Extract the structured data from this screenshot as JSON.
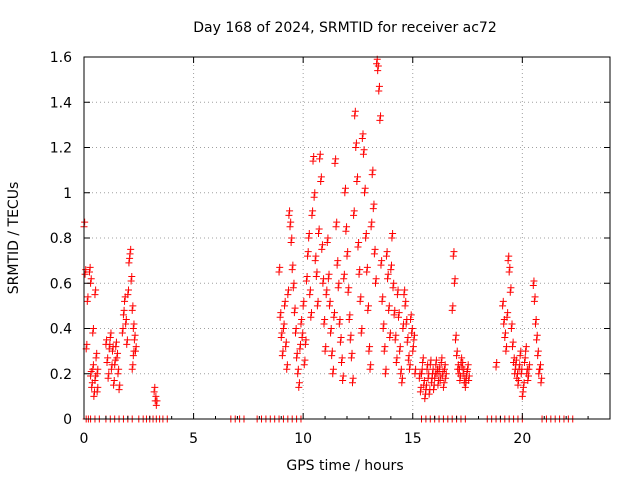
{
  "chart_data": {
    "type": "scatter",
    "title": "Day 168 of 2024, SRMTID for receiver ac72",
    "xlabel": "GPS time / hours",
    "ylabel": "SRMTID / TECUs",
    "xlim": [
      0,
      24
    ],
    "ylim": [
      0,
      1.6
    ],
    "xticks": [
      0,
      5,
      10,
      15,
      20
    ],
    "xtick_labels": [
      "0",
      "5",
      "10",
      "15",
      "20"
    ],
    "yticks": [
      0,
      0.2,
      0.4,
      0.6,
      0.8,
      1.0,
      1.2,
      1.4,
      1.6
    ],
    "ytick_labels": [
      "0",
      "0.2",
      "0.4",
      "0.6",
      "0.8",
      "1",
      "1.2",
      "1.4",
      "1.6"
    ],
    "grid": true,
    "marker": "+",
    "color": "#ff0000",
    "series": [
      {
        "name": "SRMTID",
        "points": [
          [
            0.0,
            0.85
          ],
          [
            0.05,
            0.64
          ],
          [
            0.1,
            0.31
          ],
          [
            0.15,
            0.52
          ],
          [
            0.25,
            0.65
          ],
          [
            0.3,
            0.6
          ],
          [
            0.3,
            0.19
          ],
          [
            0.35,
            0.14
          ],
          [
            0.4,
            0.38
          ],
          [
            0.4,
            0.22
          ],
          [
            0.45,
            0.1
          ],
          [
            0.5,
            0.17
          ],
          [
            0.5,
            0.55
          ],
          [
            0.55,
            0.27
          ],
          [
            0.6,
            0.2
          ],
          [
            0.6,
            0.12
          ],
          [
            1.0,
            0.33
          ],
          [
            1.05,
            0.25
          ],
          [
            1.1,
            0.18
          ],
          [
            1.15,
            0.31
          ],
          [
            1.2,
            0.36
          ],
          [
            1.25,
            0.22
          ],
          [
            1.3,
            0.3
          ],
          [
            1.35,
            0.15
          ],
          [
            1.4,
            0.24
          ],
          [
            1.45,
            0.32
          ],
          [
            1.5,
            0.27
          ],
          [
            1.55,
            0.2
          ],
          [
            1.6,
            0.13
          ],
          [
            1.75,
            0.38
          ],
          [
            1.8,
            0.46
          ],
          [
            1.85,
            0.52
          ],
          [
            1.9,
            0.42
          ],
          [
            1.95,
            0.33
          ],
          [
            2.0,
            0.55
          ],
          [
            2.05,
            0.69
          ],
          [
            2.1,
            0.73
          ],
          [
            2.15,
            0.61
          ],
          [
            2.2,
            0.48
          ],
          [
            2.25,
            0.4
          ],
          [
            2.3,
            0.35
          ],
          [
            2.25,
            0.28
          ],
          [
            2.2,
            0.22
          ],
          [
            2.35,
            0.3
          ],
          [
            3.2,
            0.12
          ],
          [
            3.25,
            0.08
          ],
          [
            3.3,
            0.06
          ],
          [
            8.9,
            0.65
          ],
          [
            8.95,
            0.45
          ],
          [
            9.0,
            0.36
          ],
          [
            9.05,
            0.28
          ],
          [
            9.1,
            0.4
          ],
          [
            9.15,
            0.5
          ],
          [
            9.2,
            0.32
          ],
          [
            9.25,
            0.22
          ],
          [
            9.3,
            0.55
          ],
          [
            9.35,
            0.9
          ],
          [
            9.4,
            0.85
          ],
          [
            9.45,
            0.78
          ],
          [
            9.5,
            0.66
          ],
          [
            9.55,
            0.58
          ],
          [
            9.6,
            0.47
          ],
          [
            9.65,
            0.38
          ],
          [
            9.7,
            0.27
          ],
          [
            9.75,
            0.2
          ],
          [
            9.8,
            0.14
          ],
          [
            9.85,
            0.31
          ],
          [
            9.9,
            0.42
          ],
          [
            9.95,
            0.36
          ],
          [
            10.0,
            0.5
          ],
          [
            10.05,
            0.24
          ],
          [
            10.1,
            0.33
          ],
          [
            10.15,
            0.61
          ],
          [
            10.2,
            0.72
          ],
          [
            10.25,
            0.8
          ],
          [
            10.3,
            0.55
          ],
          [
            10.35,
            0.45
          ],
          [
            10.4,
            0.9
          ],
          [
            10.45,
            1.14
          ],
          [
            10.5,
            0.98
          ],
          [
            10.55,
            0.7
          ],
          [
            10.6,
            0.63
          ],
          [
            10.65,
            0.5
          ],
          [
            10.7,
            0.82
          ],
          [
            10.75,
            1.15
          ],
          [
            10.8,
            1.05
          ],
          [
            10.85,
            0.75
          ],
          [
            10.9,
            0.6
          ],
          [
            10.95,
            0.42
          ],
          [
            11.0,
            0.3
          ],
          [
            11.05,
            0.55
          ],
          [
            11.1,
            0.78
          ],
          [
            11.15,
            0.62
          ],
          [
            11.2,
            0.5
          ],
          [
            11.25,
            0.38
          ],
          [
            11.3,
            0.28
          ],
          [
            11.35,
            0.2
          ],
          [
            11.4,
            0.45
          ],
          [
            11.45,
            1.13
          ],
          [
            11.5,
            0.85
          ],
          [
            11.55,
            0.68
          ],
          [
            11.6,
            0.58
          ],
          [
            11.65,
            0.42
          ],
          [
            11.7,
            0.34
          ],
          [
            11.75,
            0.25
          ],
          [
            11.8,
            0.17
          ],
          [
            11.85,
            0.62
          ],
          [
            11.9,
            1.0
          ],
          [
            11.95,
            0.83
          ],
          [
            12.0,
            0.72
          ],
          [
            12.05,
            0.56
          ],
          [
            12.1,
            0.44
          ],
          [
            12.15,
            0.35
          ],
          [
            12.2,
            0.27
          ],
          [
            12.25,
            0.16
          ],
          [
            12.3,
            0.9
          ],
          [
            12.35,
            1.34
          ],
          [
            12.4,
            1.2
          ],
          [
            12.45,
            1.05
          ],
          [
            12.5,
            0.76
          ],
          [
            12.55,
            0.64
          ],
          [
            12.6,
            0.52
          ],
          [
            12.65,
            0.38
          ],
          [
            12.7,
            1.24
          ],
          [
            12.75,
            1.17
          ],
          [
            12.8,
            1.0
          ],
          [
            12.85,
            0.8
          ],
          [
            12.9,
            0.65
          ],
          [
            12.95,
            0.48
          ],
          [
            13.0,
            0.3
          ],
          [
            13.05,
            0.22
          ],
          [
            13.1,
            0.85
          ],
          [
            13.15,
            1.08
          ],
          [
            13.2,
            0.93
          ],
          [
            13.25,
            0.73
          ],
          [
            13.3,
            0.6
          ],
          [
            13.35,
            1.57
          ],
          [
            13.4,
            1.54
          ],
          [
            13.45,
            1.45
          ],
          [
            13.5,
            1.32
          ],
          [
            13.55,
            0.68
          ],
          [
            13.6,
            0.52
          ],
          [
            13.65,
            0.4
          ],
          [
            13.7,
            0.3
          ],
          [
            13.75,
            0.2
          ],
          [
            13.8,
            0.72
          ],
          [
            13.85,
            0.62
          ],
          [
            13.9,
            0.48
          ],
          [
            13.95,
            0.36
          ],
          [
            14.0,
            0.66
          ],
          [
            14.05,
            0.8
          ],
          [
            14.1,
            0.58
          ],
          [
            14.15,
            0.46
          ],
          [
            14.2,
            0.35
          ],
          [
            14.25,
            0.25
          ],
          [
            14.3,
            0.55
          ],
          [
            14.35,
            0.45
          ],
          [
            14.4,
            0.3
          ],
          [
            14.45,
            0.2
          ],
          [
            14.5,
            0.16
          ],
          [
            14.55,
            0.4
          ],
          [
            14.6,
            0.55
          ],
          [
            14.65,
            0.5
          ],
          [
            14.7,
            0.42
          ],
          [
            14.75,
            0.34
          ],
          [
            14.8,
            0.26
          ],
          [
            14.85,
            0.22
          ],
          [
            14.9,
            0.44
          ],
          [
            14.95,
            0.38
          ],
          [
            15.0,
            0.3
          ],
          [
            15.05,
            0.35
          ],
          [
            15.1,
            0.2
          ],
          [
            15.3,
            0.18
          ],
          [
            15.35,
            0.12
          ],
          [
            15.4,
            0.2
          ],
          [
            15.45,
            0.25
          ],
          [
            15.5,
            0.15
          ],
          [
            15.55,
            0.09
          ],
          [
            15.6,
            0.13
          ],
          [
            15.65,
            0.22
          ],
          [
            15.7,
            0.18
          ],
          [
            15.75,
            0.11
          ],
          [
            15.8,
            0.24
          ],
          [
            15.85,
            0.16
          ],
          [
            15.9,
            0.2
          ],
          [
            15.95,
            0.13
          ],
          [
            16.0,
            0.18
          ],
          [
            16.05,
            0.24
          ],
          [
            16.1,
            0.2
          ],
          [
            16.15,
            0.15
          ],
          [
            16.2,
            0.21
          ],
          [
            16.25,
            0.17
          ],
          [
            16.3,
            0.25
          ],
          [
            16.35,
            0.19
          ],
          [
            16.4,
            0.14
          ],
          [
            16.45,
            0.22
          ],
          [
            16.5,
            0.18
          ],
          [
            16.8,
            0.48
          ],
          [
            16.85,
            0.72
          ],
          [
            16.9,
            0.6
          ],
          [
            16.95,
            0.35
          ],
          [
            17.0,
            0.28
          ],
          [
            17.05,
            0.22
          ],
          [
            17.1,
            0.2
          ],
          [
            17.15,
            0.17
          ],
          [
            17.2,
            0.25
          ],
          [
            17.25,
            0.23
          ],
          [
            17.3,
            0.2
          ],
          [
            17.35,
            0.16
          ],
          [
            17.4,
            0.14
          ],
          [
            17.45,
            0.19
          ],
          [
            17.5,
            0.22
          ],
          [
            17.55,
            0.17
          ],
          [
            18.8,
            0.23
          ],
          [
            19.1,
            0.5
          ],
          [
            19.15,
            0.42
          ],
          [
            19.2,
            0.36
          ],
          [
            19.25,
            0.3
          ],
          [
            19.3,
            0.45
          ],
          [
            19.35,
            0.7
          ],
          [
            19.4,
            0.65
          ],
          [
            19.45,
            0.56
          ],
          [
            19.5,
            0.4
          ],
          [
            19.55,
            0.32
          ],
          [
            19.6,
            0.25
          ],
          [
            19.65,
            0.2
          ],
          [
            19.7,
            0.24
          ],
          [
            19.75,
            0.18
          ],
          [
            19.8,
            0.15
          ],
          [
            19.85,
            0.22
          ],
          [
            19.9,
            0.28
          ],
          [
            19.95,
            0.2
          ],
          [
            20.0,
            0.1
          ],
          [
            20.05,
            0.14
          ],
          [
            20.1,
            0.25
          ],
          [
            20.15,
            0.3
          ],
          [
            20.2,
            0.2
          ],
          [
            20.25,
            0.17
          ],
          [
            20.3,
            0.22
          ],
          [
            20.5,
            0.59
          ],
          [
            20.55,
            0.52
          ],
          [
            20.6,
            0.42
          ],
          [
            20.65,
            0.35
          ],
          [
            20.7,
            0.28
          ],
          [
            20.75,
            0.2
          ],
          [
            20.8,
            0.22
          ],
          [
            20.85,
            0.16
          ]
        ]
      }
    ],
    "zero_points_x": [
      0.1,
      0.2,
      0.3,
      0.5,
      0.7,
      1.0,
      1.2,
      1.4,
      1.6,
      1.8,
      2.0,
      2.2,
      2.5,
      2.7,
      2.85,
      3.0,
      3.15,
      3.3,
      3.45,
      3.6,
      3.8,
      6.7,
      6.9,
      7.1,
      7.3,
      7.9,
      8.1,
      8.3,
      8.5,
      8.7,
      8.9,
      9.1,
      9.3,
      9.5,
      9.7,
      9.9,
      15.4,
      15.6,
      15.8,
      16.0,
      16.2,
      16.4,
      16.6,
      16.8,
      17.0,
      17.2,
      17.4,
      18.4,
      18.6,
      18.8,
      19.0,
      19.2,
      19.4,
      19.6,
      19.8,
      20.0,
      20.9,
      21.1,
      21.3,
      21.5,
      21.7,
      21.9,
      22.1,
      22.3
    ]
  }
}
